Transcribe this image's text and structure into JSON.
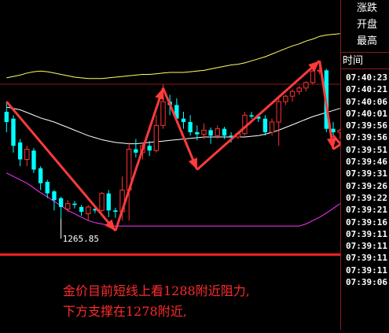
{
  "panel": {
    "buttons": [
      "涨跌",
      "开盘",
      "最高"
    ],
    "header": "时间",
    "times": [
      "07:40:23",
      "07:40:21",
      "07:40:06",
      "07:40:01",
      "07:39:56",
      "07:39:56",
      "07:39:51",
      "07:39:46",
      "07:39:31",
      "07:39:26",
      "07:39:22",
      "07:39:21",
      "07:39:16",
      "07:39:11",
      "07:39:11",
      "07:39:11",
      "07:39:11",
      "07:39:06"
    ]
  },
  "chart": {
    "low_label": "1265.85",
    "annotation_line1": "金价目前短线上看1288附近阻力,",
    "annotation_line2": "下方支撑在1278附近,"
  },
  "colors": {
    "background": "#000000",
    "up": "#ff3232",
    "down": "#00ffff",
    "arrow": "#ff3b3b",
    "upper_band": "#ffff66",
    "middle_band": "#ffffff",
    "lower_band": "#ff33ff",
    "annotation": "#ff2b2b"
  },
  "chart_data": {
    "type": "candlestick",
    "series": [
      {
        "name": "K",
        "values": [
          [
            1284.5,
            1283.0,
            1286.0,
            1281.5
          ],
          [
            1283.5,
            1279.5,
            1284.0,
            1278.5
          ],
          [
            1280.0,
            1277.5,
            1280.5,
            1276.5
          ],
          [
            1277.5,
            1279.0,
            1279.5,
            1276.5
          ],
          [
            1278.8,
            1276.0,
            1279.2,
            1275.5
          ],
          [
            1276.2,
            1274.0,
            1276.5,
            1273.0
          ],
          [
            1274.2,
            1272.5,
            1274.5,
            1271.8
          ],
          [
            1272.8,
            1271.5,
            1273.0,
            1270.0
          ],
          [
            1271.8,
            1270.5,
            1272.0,
            1268.8
          ],
          [
            1270.2,
            1271.0,
            1271.5,
            1269.8
          ],
          [
            1271.0,
            1270.8,
            1271.4,
            1270.3
          ],
          [
            1270.5,
            1269.8,
            1270.8,
            1269.2
          ],
          [
            1269.5,
            1270.5,
            1270.8,
            1268.5
          ],
          [
            1270.2,
            1270.0,
            1270.4,
            1269.6
          ],
          [
            1270.0,
            1272.5,
            1272.7,
            1269.8
          ],
          [
            1272.5,
            1270.0,
            1273.0,
            1269.0
          ],
          [
            1270.0,
            1269.8,
            1270.4,
            1268.9
          ],
          [
            1269.8,
            1273.0,
            1275.0,
            1268.5
          ],
          [
            1273.0,
            1279.0,
            1280.0,
            1268.5
          ],
          [
            1279.0,
            1278.5,
            1280.5,
            1277.8
          ],
          [
            1278.5,
            1279.5,
            1280.0,
            1277.5
          ],
          [
            1279.5,
            1278.8,
            1280.2,
            1278.0
          ],
          [
            1278.8,
            1282.5,
            1284.0,
            1278.5
          ],
          [
            1282.5,
            1286.0,
            1288.5,
            1282.0
          ],
          [
            1286.0,
            1285.5,
            1287.0,
            1284.0
          ],
          [
            1285.5,
            1283.5,
            1286.5,
            1283.0
          ],
          [
            1283.5,
            1283.0,
            1284.5,
            1282.0
          ],
          [
            1283.0,
            1281.5,
            1284.0,
            1281.0
          ],
          [
            1281.5,
            1281.2,
            1282.5,
            1280.3
          ],
          [
            1281.2,
            1281.8,
            1282.8,
            1280.5
          ],
          [
            1281.8,
            1281.0,
            1282.2,
            1279.8
          ],
          [
            1281.0,
            1282.0,
            1282.5,
            1280.5
          ],
          [
            1282.0,
            1281.0,
            1282.3,
            1280.5
          ],
          [
            1281.0,
            1280.8,
            1281.5,
            1280.0
          ],
          [
            1280.8,
            1281.3,
            1281.6,
            1280.5
          ],
          [
            1281.3,
            1284.0,
            1284.5,
            1281.0
          ],
          [
            1284.0,
            1283.8,
            1284.5,
            1283.5
          ],
          [
            1283.8,
            1283.5,
            1284.0,
            1283.0
          ],
          [
            1283.5,
            1281.5,
            1284.0,
            1281.0
          ],
          [
            1281.5,
            1283.0,
            1283.5,
            1281.0
          ],
          [
            1283.0,
            1286.0,
            1286.5,
            1279.5
          ],
          [
            1286.0,
            1286.8,
            1287.0,
            1285.5
          ],
          [
            1286.8,
            1287.5,
            1287.8,
            1286.0
          ],
          [
            1287.5,
            1288.0,
            1288.3,
            1287.0
          ],
          [
            1288.0,
            1288.8,
            1289.0,
            1287.5
          ],
          [
            1288.8,
            1290.5,
            1291.0,
            1288.5
          ],
          [
            1290.5,
            1290.6,
            1291.5,
            1290.0
          ],
          [
            1290.6,
            1282.0,
            1290.8,
            1281.5
          ],
          [
            1282.0,
            1281.5,
            1283.0,
            1281.0
          ],
          [
            1281.5,
            1281.8,
            1282.0,
            1280.5
          ]
        ]
      }
    ],
    "bands": {
      "upper": [
        1289.5,
        1289.7,
        1289.9,
        1290.2,
        1290.4,
        1290.5,
        1290.4,
        1290.2,
        1290.0,
        1289.8,
        1289.6,
        1289.5,
        1289.4,
        1289.4,
        1289.4,
        1289.5,
        1289.6,
        1289.7,
        1289.8,
        1289.9,
        1290.0,
        1290.0,
        1290.1,
        1290.2,
        1290.3,
        1290.3,
        1290.3,
        1290.4,
        1290.5,
        1290.6,
        1290.8,
        1291.0,
        1291.2,
        1291.4,
        1291.5,
        1291.7,
        1292.0,
        1292.3,
        1292.6,
        1293.0,
        1293.4,
        1293.8,
        1294.2,
        1294.5,
        1294.9,
        1295.2,
        1295.6,
        1295.8,
        1295.9,
        1296.0
      ],
      "middle": [
        1285.2,
        1285.0,
        1284.8,
        1284.4,
        1284.0,
        1283.6,
        1283.3,
        1283.0,
        1282.6,
        1282.2,
        1281.8,
        1281.4,
        1281.0,
        1280.7,
        1280.4,
        1280.2,
        1280.0,
        1279.9,
        1279.8,
        1279.8,
        1279.9,
        1280.0,
        1280.1,
        1280.2,
        1280.3,
        1280.4,
        1280.5,
        1280.6,
        1280.7,
        1280.8,
        1280.8,
        1280.8,
        1280.8,
        1280.8,
        1280.8,
        1280.8,
        1280.9,
        1281.0,
        1281.2,
        1281.5,
        1281.8,
        1282.2,
        1282.6,
        1283.0,
        1283.4,
        1283.8,
        1284.1,
        1284.4,
        1284.7,
        1285.0
      ],
      "lower": [
        1275.5,
        1275.0,
        1274.5,
        1274.0,
        1273.3,
        1272.6,
        1272.0,
        1271.3,
        1270.7,
        1270.0,
        1269.5,
        1269.0,
        1268.5,
        1268.2,
        1268.0,
        1267.8,
        1267.7,
        1267.7,
        1267.7,
        1267.7,
        1267.7,
        1267.7,
        1267.7,
        1267.7,
        1267.7,
        1267.7,
        1267.7,
        1267.7,
        1267.7,
        1267.7,
        1267.7,
        1267.7,
        1267.7,
        1267.7,
        1267.7,
        1267.7,
        1267.7,
        1267.7,
        1267.7,
        1267.7,
        1267.7,
        1267.7,
        1267.7,
        1267.7,
        1268.0,
        1268.5,
        1269.0,
        1269.6,
        1270.3,
        1271.0
      ]
    },
    "arrows": [
      {
        "from": [
          0,
          1286.0
        ],
        "to": [
          16,
          1267.0
        ]
      },
      {
        "from": [
          16,
          1267.0
        ],
        "to": [
          23,
          1288.0
        ]
      },
      {
        "from": [
          23,
          1288.0
        ],
        "to": [
          28,
          1276.0
        ]
      },
      {
        "from": [
          28,
          1276.0
        ],
        "to": [
          46,
          1292.0
        ]
      },
      {
        "from": [
          46,
          1292.0
        ],
        "to": [
          48,
          1279.0
        ]
      },
      {
        "from": [
          48,
          1279.0
        ],
        "to": [
          51,
          1281.0
        ]
      },
      {
        "from": [
          48,
          1281.0
        ],
        "to": [
          51,
          1277.5
        ]
      }
    ],
    "low_value": 1265.85,
    "support_line": 1263.5,
    "ylim": [
      1261,
      1294
    ]
  }
}
